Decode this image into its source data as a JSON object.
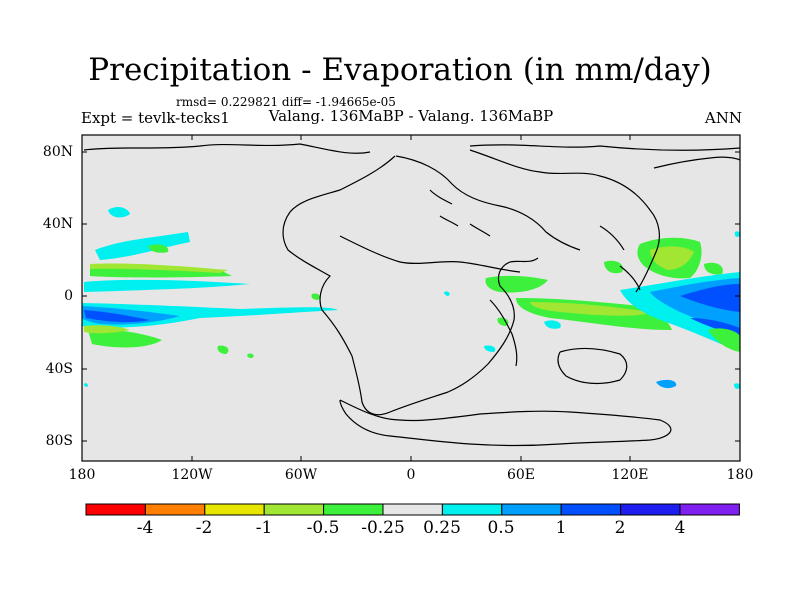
{
  "title": "Precipitation - Evaporation (in mm/day)",
  "stats": "rmsd= 0.229821 diff= -1.94665e-05",
  "expt": "Expt = tevlk-tecks1",
  "subtitle": "Valang. 136MaBP - Valang. 136MaBP",
  "season": "ANN",
  "axes": {
    "y_ticks": [
      "80N",
      "40N",
      "0",
      "40S",
      "80S"
    ],
    "x_ticks": [
      "180",
      "120W",
      "60W",
      "0",
      "60E",
      "120E",
      "180"
    ]
  },
  "colorbar": {
    "colors": [
      "#ff0000",
      "#ff8000",
      "#e6e600",
      "#a0e632",
      "#3cf03c",
      "#e6e6e6",
      "#00f0f0",
      "#00a0ff",
      "#0050ff",
      "#1e1ef0",
      "#8020f0"
    ],
    "labels": [
      "-4",
      "-2",
      "-1",
      "-0.5",
      "-0.25",
      "0.25",
      "0.5",
      "1",
      "2",
      "4"
    ]
  },
  "chart_data": {
    "type": "heatmap",
    "title": "Precipitation - Evaporation (in mm/day)",
    "variable": "Precipitation - Evaporation",
    "units": "mm/day",
    "x_range": [
      -180,
      180
    ],
    "y_range": [
      -90,
      90
    ],
    "levels": [
      -4,
      -2,
      -1,
      -0.5,
      -0.25,
      0.25,
      0.5,
      1,
      2,
      4
    ]
  }
}
